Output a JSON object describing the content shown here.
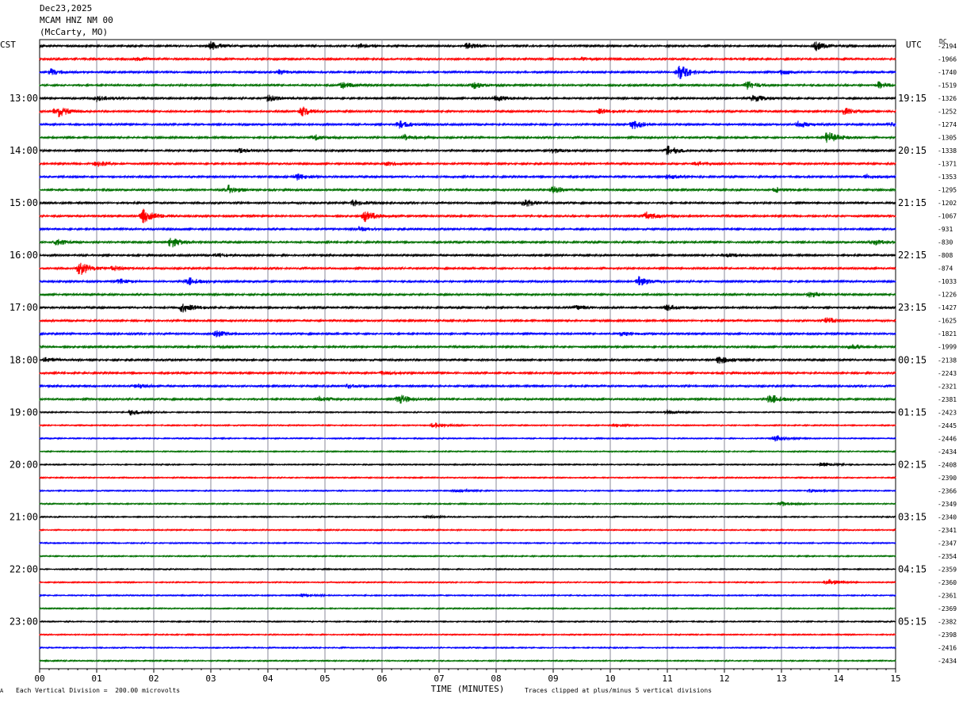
{
  "header": {
    "date": "Dec23,2025",
    "station": "MCAM HNZ NM 00",
    "location": "(McCarty, MO)"
  },
  "left_zone": "CST",
  "right_zone": "UTC",
  "dc_label": "DC",
  "footer": {
    "scale_note": "Each Vertical Division =  200.00 microvolts",
    "clip_note": "Traces clipped at plus/minus 5 vertical divisions",
    "corner_mark": "A"
  },
  "chart_data": {
    "type": "line",
    "title": "",
    "xlabel": "TIME (MINUTES)",
    "ylabel": "",
    "xlim": [
      0,
      15
    ],
    "x_ticks": [
      "00",
      "01",
      "02",
      "03",
      "04",
      "05",
      "06",
      "07",
      "08",
      "09",
      "10",
      "11",
      "12",
      "13",
      "14",
      "15"
    ],
    "trace_count": 48,
    "trace_colors": [
      "#000000",
      "#ff0000",
      "#0000ff",
      "#007000"
    ],
    "left_time_labels": [
      "13:00",
      "14:00",
      "15:00",
      "16:00",
      "17:00",
      "18:00",
      "19:00",
      "20:00",
      "21:00",
      "22:00",
      "23:00"
    ],
    "right_time_labels": [
      "19:15",
      "20:15",
      "21:15",
      "22:15",
      "23:15",
      "00:15",
      "01:15",
      "02:15",
      "03:15",
      "04:15",
      "05:15"
    ],
    "dc_offsets": [
      "-2194",
      "-1966",
      "-1740",
      "-1519",
      "-1326",
      "-1252",
      "-1274",
      "-1305",
      "-1338",
      "-1371",
      "-1353",
      "-1295",
      "-1202",
      "-1067",
      "-931",
      "-830",
      "-808",
      "-874",
      "-1033",
      "-1226",
      "-1427",
      "-1625",
      "-1821",
      "-1999",
      "-2138",
      "-2243",
      "-2321",
      "-2381",
      "-2423",
      "-2445",
      "-2446",
      "-2434",
      "-2408",
      "-2390",
      "-2366",
      "-2349",
      "-2340",
      "-2341",
      "-2347",
      "-2354",
      "-2359",
      "-2360",
      "-2361",
      "-2369",
      "-2382",
      "-2398",
      "-2416",
      "-2434"
    ],
    "events": [
      {
        "trace": 0,
        "minute": 3.0,
        "amp": 5
      },
      {
        "trace": 0,
        "minute": 5.6,
        "amp": 3
      },
      {
        "trace": 0,
        "minute": 7.5,
        "amp": 4
      },
      {
        "trace": 0,
        "minute": 13.6,
        "amp": 6
      },
      {
        "trace": 1,
        "minute": 1.7,
        "amp": 2
      },
      {
        "trace": 1,
        "minute": 9.5,
        "amp": 2
      },
      {
        "trace": 2,
        "minute": 0.2,
        "amp": 4
      },
      {
        "trace": 2,
        "minute": 4.2,
        "amp": 3
      },
      {
        "trace": 2,
        "minute": 11.2,
        "amp": 10
      },
      {
        "trace": 2,
        "minute": 13.0,
        "amp": 3
      },
      {
        "trace": 3,
        "minute": 5.3,
        "amp": 4
      },
      {
        "trace": 3,
        "minute": 7.6,
        "amp": 4
      },
      {
        "trace": 3,
        "minute": 12.4,
        "amp": 5
      },
      {
        "trace": 3,
        "minute": 14.7,
        "amp": 4
      },
      {
        "trace": 4,
        "minute": 1.0,
        "amp": 4
      },
      {
        "trace": 4,
        "minute": 4.0,
        "amp": 4
      },
      {
        "trace": 4,
        "minute": 8.0,
        "amp": 4
      },
      {
        "trace": 4,
        "minute": 12.5,
        "amp": 5
      },
      {
        "trace": 5,
        "minute": 0.3,
        "amp": 8
      },
      {
        "trace": 5,
        "minute": 4.6,
        "amp": 6
      },
      {
        "trace": 5,
        "minute": 9.8,
        "amp": 3
      },
      {
        "trace": 5,
        "minute": 14.1,
        "amp": 5
      },
      {
        "trace": 6,
        "minute": 6.3,
        "amp": 5
      },
      {
        "trace": 6,
        "minute": 10.4,
        "amp": 6
      },
      {
        "trace": 6,
        "minute": 13.3,
        "amp": 4
      },
      {
        "trace": 6,
        "minute": 14.9,
        "amp": 3
      },
      {
        "trace": 7,
        "minute": 4.8,
        "amp": 4
      },
      {
        "trace": 7,
        "minute": 6.4,
        "amp": 4
      },
      {
        "trace": 7,
        "minute": 13.8,
        "amp": 8
      },
      {
        "trace": 8,
        "minute": 3.5,
        "amp": 3
      },
      {
        "trace": 8,
        "minute": 9.0,
        "amp": 3
      },
      {
        "trace": 8,
        "minute": 11.0,
        "amp": 6
      },
      {
        "trace": 9,
        "minute": 1.0,
        "amp": 4
      },
      {
        "trace": 9,
        "minute": 6.1,
        "amp": 3
      },
      {
        "trace": 9,
        "minute": 11.5,
        "amp": 3
      },
      {
        "trace": 10,
        "minute": 4.5,
        "amp": 4
      },
      {
        "trace": 10,
        "minute": 11.0,
        "amp": 3
      },
      {
        "trace": 10,
        "minute": 14.5,
        "amp": 3
      },
      {
        "trace": 11,
        "minute": 3.3,
        "amp": 6
      },
      {
        "trace": 11,
        "minute": 9.0,
        "amp": 5
      },
      {
        "trace": 11,
        "minute": 12.9,
        "amp": 3
      },
      {
        "trace": 12,
        "minute": 5.5,
        "amp": 4
      },
      {
        "trace": 12,
        "minute": 8.5,
        "amp": 5
      },
      {
        "trace": 13,
        "minute": 1.8,
        "amp": 9
      },
      {
        "trace": 13,
        "minute": 5.7,
        "amp": 7
      },
      {
        "trace": 13,
        "minute": 10.6,
        "amp": 6
      },
      {
        "trace": 14,
        "minute": 5.6,
        "amp": 3
      },
      {
        "trace": 15,
        "minute": 0.3,
        "amp": 4
      },
      {
        "trace": 15,
        "minute": 2.3,
        "amp": 7
      },
      {
        "trace": 15,
        "minute": 14.6,
        "amp": 4
      },
      {
        "trace": 16,
        "minute": 3.1,
        "amp": 3
      },
      {
        "trace": 16,
        "minute": 12.0,
        "amp": 3
      },
      {
        "trace": 17,
        "minute": 0.7,
        "amp": 9
      },
      {
        "trace": 17,
        "minute": 1.3,
        "amp": 3
      },
      {
        "trace": 18,
        "minute": 1.4,
        "amp": 3
      },
      {
        "trace": 18,
        "minute": 2.6,
        "amp": 5
      },
      {
        "trace": 18,
        "minute": 10.5,
        "amp": 6
      },
      {
        "trace": 19,
        "minute": 13.5,
        "amp": 4
      },
      {
        "trace": 20,
        "minute": 2.5,
        "amp": 6
      },
      {
        "trace": 20,
        "minute": 9.4,
        "amp": 3
      },
      {
        "trace": 20,
        "minute": 11.0,
        "amp": 4
      },
      {
        "trace": 21,
        "minute": 13.8,
        "amp": 4
      },
      {
        "trace": 22,
        "minute": 3.1,
        "amp": 4
      },
      {
        "trace": 22,
        "minute": 10.2,
        "amp": 3
      },
      {
        "trace": 23,
        "minute": 3.2,
        "amp": 2
      },
      {
        "trace": 23,
        "minute": 14.2,
        "amp": 4
      },
      {
        "trace": 24,
        "minute": 0.1,
        "amp": 3
      },
      {
        "trace": 24,
        "minute": 11.9,
        "amp": 5
      },
      {
        "trace": 25,
        "minute": 6.0,
        "amp": 2
      },
      {
        "trace": 26,
        "minute": 1.7,
        "amp": 3
      },
      {
        "trace": 26,
        "minute": 5.4,
        "amp": 3
      },
      {
        "trace": 27,
        "minute": 4.9,
        "amp": 4
      },
      {
        "trace": 27,
        "minute": 6.3,
        "amp": 6
      },
      {
        "trace": 27,
        "minute": 12.8,
        "amp": 6
      },
      {
        "trace": 28,
        "minute": 1.6,
        "amp": 4
      },
      {
        "trace": 28,
        "minute": 11.0,
        "amp": 3
      },
      {
        "trace": 29,
        "minute": 6.9,
        "amp": 4
      },
      {
        "trace": 29,
        "minute": 10.1,
        "amp": 2
      },
      {
        "trace": 30,
        "minute": 12.9,
        "amp": 4
      },
      {
        "trace": 32,
        "minute": 13.7,
        "amp": 3
      },
      {
        "trace": 34,
        "minute": 7.3,
        "amp": 2
      },
      {
        "trace": 34,
        "minute": 13.5,
        "amp": 2
      },
      {
        "trace": 35,
        "minute": 13.0,
        "amp": 3
      },
      {
        "trace": 36,
        "minute": 6.8,
        "amp": 2
      },
      {
        "trace": 41,
        "minute": 13.8,
        "amp": 5
      },
      {
        "trace": 42,
        "minute": 4.6,
        "amp": 2
      }
    ]
  }
}
